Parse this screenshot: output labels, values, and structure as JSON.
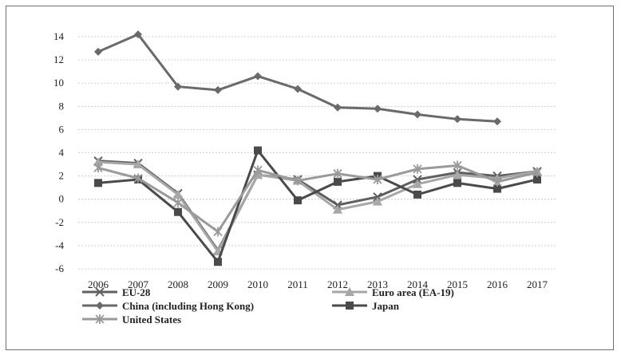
{
  "chart_data": {
    "type": "line",
    "categories": [
      "2006",
      "2007",
      "2008",
      "2009",
      "2010",
      "2011",
      "2012",
      "2013",
      "2014",
      "2015",
      "2016",
      "2017"
    ],
    "y_ticks": [
      "14",
      "12",
      "10",
      "8",
      "6",
      "4",
      "2",
      "0",
      "-2",
      "-4",
      "-6"
    ],
    "ylim": [
      -6,
      14
    ],
    "grid": true,
    "legend_position": "bottom",
    "series": [
      {
        "name": "EU-28",
        "marker": "x",
        "color": "#5f5f5f",
        "values": [
          3.3,
          3.1,
          0.5,
          -4.4,
          2.1,
          1.7,
          -0.5,
          0.2,
          1.7,
          2.3,
          2.0,
          2.4
        ]
      },
      {
        "name": "Euro area (EA-19)",
        "marker": "triangle",
        "color": "#a7a7a7",
        "values": [
          3.2,
          3.0,
          0.4,
          -4.5,
          2.1,
          1.6,
          -0.9,
          -0.2,
          1.3,
          2.1,
          1.8,
          2.4
        ]
      },
      {
        "name": "China (including Hong Kong)",
        "marker": "diamond",
        "color": "#6a6a6a",
        "values": [
          12.7,
          14.2,
          9.7,
          9.4,
          10.6,
          9.5,
          7.9,
          7.8,
          7.3,
          6.9,
          6.7,
          null
        ]
      },
      {
        "name": "Japan",
        "marker": "square",
        "color": "#4a4a4a",
        "values": [
          1.4,
          1.7,
          -1.1,
          -5.4,
          4.2,
          -0.1,
          1.5,
          2.0,
          0.4,
          1.4,
          0.9,
          1.7
        ]
      },
      {
        "name": "United States",
        "marker": "star",
        "color": "#9a9a9a",
        "values": [
          2.7,
          1.8,
          -0.3,
          -2.8,
          2.5,
          1.6,
          2.2,
          1.7,
          2.6,
          2.9,
          1.5,
          2.3
        ]
      }
    ]
  }
}
